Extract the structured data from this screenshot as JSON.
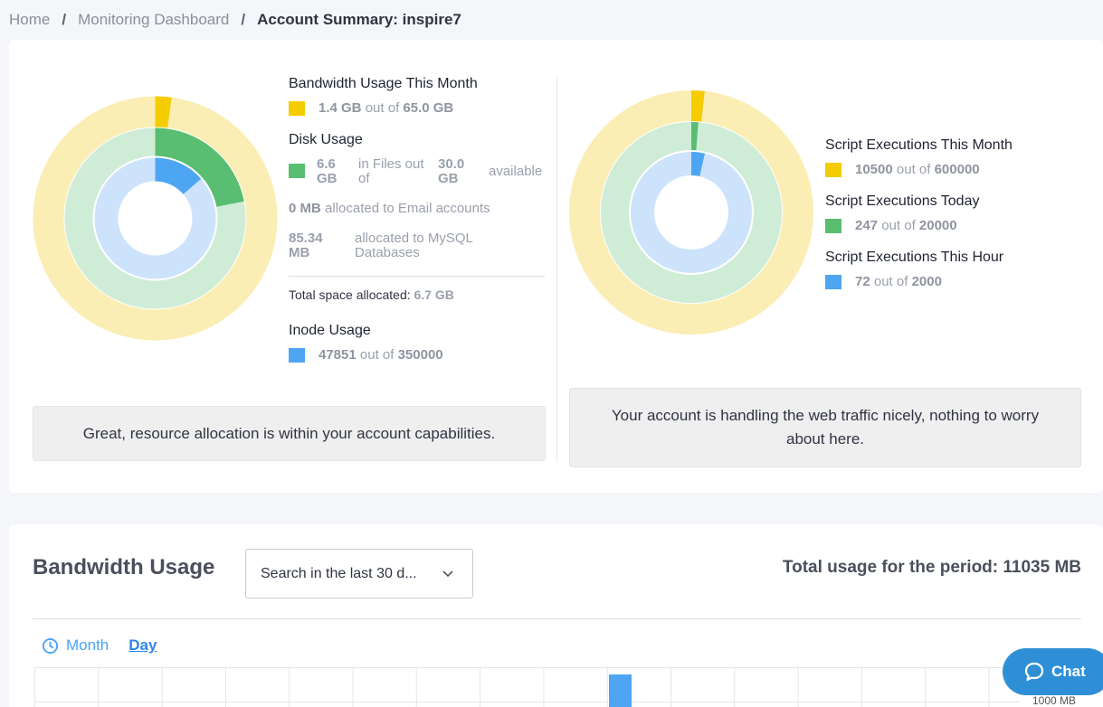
{
  "breadcrumb": {
    "home": "Home",
    "dashboard": "Monitoring Dashboard",
    "current": "Account Summary: inspire7",
    "separator": "/"
  },
  "colors": {
    "yellow": "#f5cc00",
    "yellow_light": "#fbeeb4",
    "green": "#59bd72",
    "green_light": "#cfecd6",
    "blue": "#4ea6f2",
    "blue_light": "#cde3fb"
  },
  "resources": {
    "bandwidth": {
      "title": "Bandwidth Usage This Month",
      "used": "1.4 GB",
      "out_of": "out of",
      "total": "65.0 GB",
      "fraction": 0.0215
    },
    "disk": {
      "title": "Disk Usage",
      "used": "6.6 GB",
      "in_files": "in Files out of",
      "total": "30.0 GB",
      "available": "available",
      "fraction": 0.22
    },
    "email": {
      "amount": "0 MB",
      "text": "allocated to Email accounts"
    },
    "mysql": {
      "amount": "85.34 MB",
      "text": "allocated to MySQL Databases"
    },
    "total_alloc": {
      "label": "Total space allocated:",
      "value": "6.7 GB"
    },
    "inode": {
      "title": "Inode Usage",
      "used": "47851",
      "out_of": "out of",
      "total": "350000",
      "fraction": 0.1367
    },
    "message": "Great, resource allocation is within your account capabilities."
  },
  "scripts": {
    "month": {
      "title": "Script Executions This Month",
      "used": "10500",
      "out_of": "out of",
      "total": "600000",
      "fraction": 0.0175
    },
    "today": {
      "title": "Script Executions Today",
      "used": "247",
      "out_of": "out of",
      "total": "20000",
      "fraction": 0.0124
    },
    "hour": {
      "title": "Script Executions This Hour",
      "used": "72",
      "out_of": "out of",
      "total": "2000",
      "fraction": 0.036
    },
    "message": "Your account is handling the web traffic nicely, nothing to worry about here."
  },
  "bandwidth_section": {
    "title": "Bandwidth Usage",
    "select_value": "Search in the last 30 d...",
    "total": "Total usage for the period: 11035 MB",
    "tab_month": "Month",
    "tab_day": "Day",
    "axis_label": "1000 MB"
  },
  "chat": {
    "label": "Chat"
  }
}
